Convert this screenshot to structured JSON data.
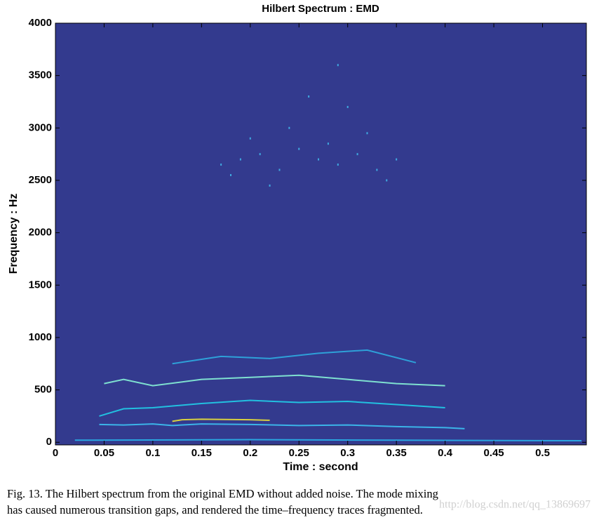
{
  "chart_data": {
    "type": "line",
    "title": "Hilbert Spectrum :  EMD",
    "xlabel": "Time : second",
    "ylabel": "Frequency : Hz",
    "background": "#333a8e",
    "xlim": [
      0,
      0.545
    ],
    "ylim": [
      -25,
      4000
    ],
    "xticks": [
      0,
      0.05,
      0.1,
      0.15,
      0.2,
      0.25,
      0.3,
      0.35,
      0.4,
      0.45,
      0.5
    ],
    "yticks": [
      0,
      500,
      1000,
      1500,
      2000,
      2500,
      3000,
      3500,
      4000
    ],
    "traces": [
      {
        "color": "#2aa6e0",
        "x": [
          0.02,
          0.2,
          0.35,
          0.54
        ],
        "values": [
          20,
          25,
          20,
          15
        ]
      },
      {
        "color": "#3bb4e8",
        "x": [
          0.045,
          0.07,
          0.1,
          0.12,
          0.15,
          0.2,
          0.25,
          0.3,
          0.35,
          0.4,
          0.42
        ],
        "values": [
          170,
          165,
          175,
          160,
          175,
          170,
          160,
          165,
          150,
          140,
          130
        ]
      },
      {
        "color": "#d8d040",
        "x": [
          0.12,
          0.13,
          0.15,
          0.2,
          0.22
        ],
        "values": [
          200,
          215,
          220,
          215,
          210
        ]
      },
      {
        "color": "#22c0e0",
        "x": [
          0.045,
          0.07,
          0.1,
          0.15,
          0.2,
          0.25,
          0.3,
          0.35,
          0.4
        ],
        "values": [
          250,
          320,
          330,
          370,
          400,
          380,
          390,
          360,
          330
        ]
      },
      {
        "color": "#7ee0d0",
        "x": [
          0.05,
          0.07,
          0.1,
          0.15,
          0.2,
          0.25,
          0.3,
          0.35,
          0.4
        ],
        "values": [
          560,
          600,
          540,
          600,
          620,
          640,
          600,
          560,
          540
        ]
      },
      {
        "color": "#2ea0d8",
        "x": [
          0.12,
          0.17,
          0.22,
          0.27,
          0.32,
          0.37
        ],
        "values": [
          750,
          820,
          800,
          850,
          880,
          760
        ]
      }
    ],
    "points": {
      "color": "#3fa8e0",
      "x": [
        0.17,
        0.19,
        0.21,
        0.23,
        0.25,
        0.27,
        0.29,
        0.31,
        0.33,
        0.35,
        0.2,
        0.24,
        0.28,
        0.32,
        0.26,
        0.3,
        0.22,
        0.34,
        0.18,
        0.29
      ],
      "values": [
        2650,
        2700,
        2750,
        2600,
        2800,
        2700,
        2650,
        2750,
        2600,
        2700,
        2900,
        3000,
        2850,
        2950,
        3300,
        3200,
        2450,
        2500,
        2550,
        3600
      ]
    }
  },
  "caption": {
    "lines": [
      "Fig. 13.   The Hilbert spectrum from the original EMD without added noise. The mode mixing",
      "has caused numerous transition gaps, and rendered the time–frequency traces fragmented."
    ]
  },
  "watermark": "http://blog.csdn.net/qq_13869697"
}
